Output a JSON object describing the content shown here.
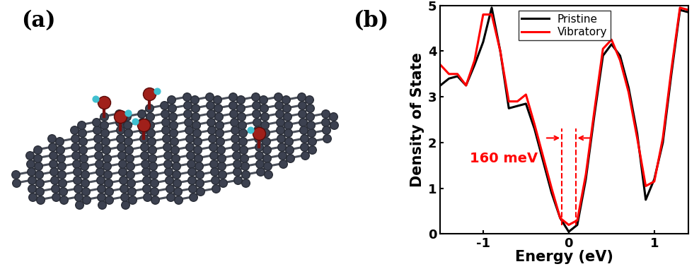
{
  "panel_labels": [
    "(a)",
    "(b)"
  ],
  "chart_data": {
    "type": "line",
    "x_label": "Energy (eV)",
    "y_label": "Density of State",
    "x": [
      -1.5,
      -1.4,
      -1.3,
      -1.2,
      -1.1,
      -1.0,
      -0.9,
      -0.8,
      -0.7,
      -0.6,
      -0.5,
      -0.4,
      -0.3,
      -0.2,
      -0.1,
      0.0,
      0.1,
      0.2,
      0.3,
      0.4,
      0.5,
      0.6,
      0.7,
      0.8,
      0.9,
      1.0,
      1.1,
      1.2,
      1.3,
      1.4
    ],
    "series": [
      {
        "name": "Pristine",
        "color": "#000000",
        "values": [
          3.25,
          3.4,
          3.45,
          3.25,
          3.7,
          4.2,
          4.95,
          4.0,
          2.75,
          2.8,
          2.85,
          2.3,
          1.6,
          0.9,
          0.35,
          0.05,
          0.2,
          1.2,
          2.6,
          3.9,
          4.15,
          3.9,
          3.2,
          2.2,
          0.75,
          1.2,
          2.0,
          3.5,
          4.9,
          4.85
        ]
      },
      {
        "name": "Vibratory",
        "color": "#ff0000",
        "values": [
          3.7,
          3.5,
          3.5,
          3.25,
          3.8,
          4.8,
          4.8,
          4.0,
          2.9,
          2.9,
          3.05,
          2.4,
          1.7,
          1.0,
          0.35,
          0.2,
          0.3,
          1.3,
          2.7,
          4.05,
          4.25,
          3.8,
          3.1,
          2.1,
          1.05,
          1.15,
          2.1,
          3.6,
          4.95,
          4.9
        ]
      }
    ],
    "xlim": [
      -1.5,
      1.4
    ],
    "xticks": [
      -1,
      0,
      1
    ],
    "ylim": [
      0,
      5
    ],
    "yticks": [
      0,
      1,
      2,
      3,
      4,
      5
    ],
    "legend": "upper center",
    "annotation": {
      "text": "160 meV",
      "color": "#ff0000",
      "x": [
        -0.08,
        0.08
      ]
    }
  }
}
